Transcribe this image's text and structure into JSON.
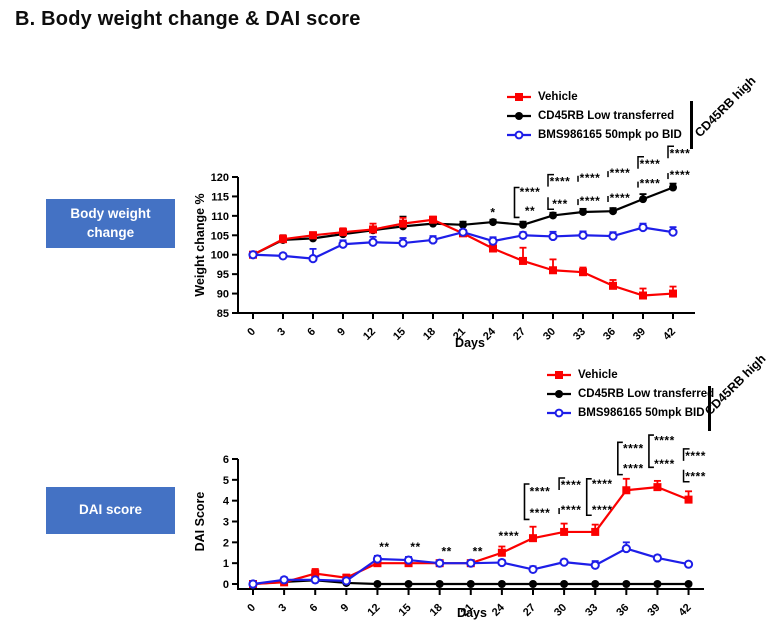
{
  "page": {
    "title": "B. Body weight change & DAI score"
  },
  "side_labels": [
    {
      "text": "Body weight change"
    },
    {
      "text": "DAI score"
    }
  ],
  "colors": {
    "red": "#FB0000",
    "black": "#000000",
    "blue": "#1E1EE8",
    "box": "#4472C4",
    "box_text": "#FFFFFF"
  },
  "chart_data": [
    {
      "type": "line",
      "title": "",
      "xlabel": "Days",
      "ylabel": "Weight change %",
      "x": [
        0,
        3,
        6,
        9,
        12,
        15,
        18,
        21,
        24,
        27,
        30,
        33,
        36,
        39,
        42
      ],
      "ylim": [
        85,
        120
      ],
      "ystep": 5,
      "grid": false,
      "legend_position": "top-right",
      "legend_note": "CD45RB high",
      "series": [
        {
          "name": "Vehicle",
          "color_key": "red",
          "marker": "square",
          "values": [
            100,
            104,
            105,
            105.8,
            106.5,
            108,
            109,
            105.5,
            101.6,
            98.4,
            96,
            95.5,
            92,
            89.5,
            90
          ],
          "errors": [
            0,
            1,
            0.8,
            1,
            1.5,
            1.5,
            0.8,
            0.6,
            1,
            3.4,
            2.8,
            1.2,
            1.5,
            1.8,
            1.8
          ]
        },
        {
          "name": "CD45RB Low transferred",
          "color_key": "black",
          "marker": "circle",
          "values": [
            100,
            103.8,
            104.2,
            105.3,
            106.3,
            107.3,
            108,
            107.7,
            108.4,
            107.7,
            110.1,
            111,
            111.2,
            114.3,
            117.3
          ],
          "errors": [
            0,
            1.2,
            1.5,
            0.9,
            0.9,
            2.5,
            0.8,
            0.8,
            0.6,
            0.8,
            0.7,
            0.8,
            0.8,
            1.3,
            1
          ]
        },
        {
          "name": "BMS986165 50mpk po BID",
          "color_key": "blue",
          "marker": "circle-open",
          "values": [
            100,
            99.7,
            99,
            102.7,
            103.2,
            103,
            103.8,
            105.8,
            103.5,
            105,
            104.7,
            105,
            104.8,
            107,
            105.8
          ],
          "errors": [
            0,
            0.6,
            2.5,
            1,
            1.4,
            1.3,
            1,
            0.5,
            1,
            0.8,
            1.2,
            1,
            1,
            1,
            1.3
          ]
        }
      ],
      "annotations": [
        {
          "day": 24,
          "items": [
            {
              "text": "*",
              "color_key": "black",
              "value": 110.8,
              "single": true
            }
          ]
        },
        {
          "day": 27,
          "span": {
            "top": 117.3,
            "bottom": 109.6
          },
          "items": [
            {
              "text": "****",
              "color_key": "black",
              "value": 116.2
            },
            {
              "text": "**",
              "color_key": "blue",
              "value": 111.2
            }
          ]
        },
        {
          "day": 30,
          "items": [
            {
              "text": "****",
              "color_key": "black",
              "value": 118.8,
              "bracket": "g"
            },
            {
              "text": "***",
              "color_key": "blue",
              "value": 113,
              "bracket": "l"
            }
          ]
        },
        {
          "day": 33,
          "items": [
            {
              "text": "****",
              "color_key": "black",
              "value": 119.8,
              "bracket": "t"
            },
            {
              "text": "****",
              "color_key": "blue",
              "value": 113.8,
              "bracket": "t"
            }
          ]
        },
        {
          "day": 36,
          "items": [
            {
              "text": "****",
              "color_key": "black",
              "value": 121,
              "bracket": "t"
            },
            {
              "text": "****",
              "color_key": "blue",
              "value": 114.6,
              "bracket": "t"
            }
          ]
        },
        {
          "day": 39,
          "items": [
            {
              "text": "****",
              "color_key": "black",
              "value": 123.4,
              "bracket": "g"
            },
            {
              "text": "****",
              "color_key": "blue",
              "value": 118.3,
              "bracket": "t"
            }
          ]
        },
        {
          "day": 42,
          "items": [
            {
              "text": "****",
              "color_key": "black",
              "value": 126.1,
              "bracket": "g"
            },
            {
              "text": "****",
              "color_key": "blue",
              "value": 120.5,
              "bracket": "t"
            }
          ]
        }
      ]
    },
    {
      "type": "line",
      "title": "",
      "xlabel": "Days",
      "ylabel": "DAI Score",
      "x": [
        0,
        3,
        6,
        9,
        12,
        15,
        18,
        21,
        24,
        27,
        30,
        33,
        36,
        39,
        42
      ],
      "ylim": [
        0,
        6
      ],
      "ystep": 1,
      "grid": false,
      "legend_position": "top-right",
      "legend_note": "CD45RB high",
      "series": [
        {
          "name": "Vehicle",
          "color_key": "red",
          "marker": "square",
          "values": [
            0,
            0.08,
            0.5,
            0.3,
            1,
            1,
            1,
            1,
            1.5,
            2.2,
            2.5,
            2.5,
            4.5,
            4.65,
            4.05
          ],
          "errors": [
            0,
            0.08,
            0.22,
            0.15,
            0.18,
            0.18,
            0.08,
            0.08,
            0.3,
            0.55,
            0.4,
            0.35,
            0.55,
            0.3,
            0.4
          ]
        },
        {
          "name": "CD45RB Low transferred",
          "color_key": "black",
          "marker": "circle",
          "values": [
            0,
            0.1,
            0.18,
            0.05,
            0,
            0,
            0,
            0,
            0,
            0,
            0,
            0,
            0,
            0,
            0
          ],
          "errors": [
            0,
            0,
            0,
            0,
            0,
            0,
            0,
            0,
            0,
            0,
            0,
            0,
            0,
            0,
            0
          ]
        },
        {
          "name": "BMS986165 50mpk BID",
          "color_key": "blue",
          "marker": "circle-open",
          "values": [
            0,
            0.2,
            0.2,
            0.15,
            1.2,
            1.15,
            1,
            1,
            1.03,
            0.7,
            1.05,
            0.9,
            1.7,
            1.25,
            0.95
          ],
          "errors": [
            0,
            0.12,
            0.1,
            0.1,
            0.15,
            0.15,
            0.08,
            0.08,
            0.12,
            0.15,
            0.12,
            0.2,
            0.3,
            0.12,
            0.08
          ]
        }
      ],
      "annotations": [
        {
          "day": 12,
          "items": [
            {
              "text": "**",
              "color_key": "black",
              "value": 1.78
            }
          ]
        },
        {
          "day": 15,
          "items": [
            {
              "text": "**",
              "color_key": "black",
              "value": 1.78
            }
          ]
        },
        {
          "day": 18,
          "items": [
            {
              "text": "**",
              "color_key": "black",
              "value": 1.55
            }
          ]
        },
        {
          "day": 21,
          "items": [
            {
              "text": "**",
              "color_key": "black",
              "value": 1.55
            }
          ]
        },
        {
          "day": 24,
          "items": [
            {
              "text": "****",
              "color_key": "black",
              "value": 2.3
            }
          ]
        },
        {
          "day": 27,
          "span": {
            "top": 4.8,
            "bottom": 3.1
          },
          "items": [
            {
              "text": "****",
              "color_key": "black",
              "value": 4.45
            },
            {
              "text": "****",
              "color_key": "blue",
              "value": 3.4
            }
          ]
        },
        {
          "day": 30,
          "items": [
            {
              "text": "****",
              "color_key": "black",
              "value": 4.75,
              "bracket": "g"
            },
            {
              "text": "****",
              "color_key": "blue",
              "value": 3.55,
              "bracket": "t"
            }
          ]
        },
        {
          "day": 33,
          "span": {
            "top": 5.05,
            "bottom": 3.3
          },
          "items": [
            {
              "text": "****",
              "color_key": "black",
              "value": 4.8
            },
            {
              "text": "****",
              "color_key": "blue",
              "value": 3.55
            }
          ]
        },
        {
          "day": 36,
          "span": {
            "top": 6.8,
            "bottom": 5.25
          },
          "items": [
            {
              "text": "****",
              "color_key": "black",
              "value": 6.5
            },
            {
              "text": "****",
              "color_key": "blue",
              "value": 5.55
            }
          ]
        },
        {
          "day": 39,
          "span": {
            "top": 7.15,
            "bottom": 5.6
          },
          "items": [
            {
              "text": "****",
              "color_key": "black",
              "value": 6.9
            },
            {
              "text": "****",
              "color_key": "blue",
              "value": 5.75
            }
          ]
        },
        {
          "day": 42,
          "items": [
            {
              "text": "****",
              "color_key": "black",
              "value": 6.15,
              "bracket": "g"
            },
            {
              "text": "****",
              "color_key": "blue",
              "value": 5.15,
              "bracket": "l"
            }
          ]
        }
      ]
    }
  ]
}
